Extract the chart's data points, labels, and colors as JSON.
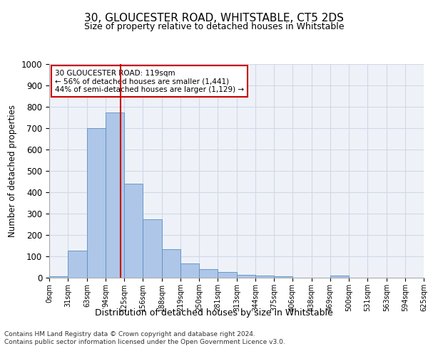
{
  "title1": "30, GLOUCESTER ROAD, WHITSTABLE, CT5 2DS",
  "title2": "Size of property relative to detached houses in Whitstable",
  "xlabel_bottom": "Distribution of detached houses by size in Whitstable",
  "ylabel": "Number of detached properties",
  "bins": [
    0,
    31,
    63,
    94,
    125,
    156,
    188,
    219,
    250,
    281,
    313,
    344,
    375,
    406,
    438,
    469,
    500,
    531,
    563,
    594,
    625
  ],
  "counts": [
    8,
    128,
    700,
    775,
    440,
    275,
    133,
    68,
    40,
    27,
    14,
    11,
    8,
    0,
    0,
    10,
    0,
    0,
    0,
    0
  ],
  "bar_color": "#aec6e8",
  "bar_edge_color": "#5a8fc2",
  "grid_color": "#d0d8e8",
  "bg_color": "#eef2f8",
  "property_size": 119,
  "vline_color": "#cc0000",
  "annotation_text": "30 GLOUCESTER ROAD: 119sqm\n← 56% of detached houses are smaller (1,441)\n44% of semi-detached houses are larger (1,129) →",
  "annotation_box_color": "#ffffff",
  "annotation_box_edge": "#cc0000",
  "footer1": "Contains HM Land Registry data © Crown copyright and database right 2024.",
  "footer2": "Contains public sector information licensed under the Open Government Licence v3.0.",
  "ylim": [
    0,
    1000
  ],
  "xlim": [
    0,
    625
  ],
  "yticks": [
    0,
    100,
    200,
    300,
    400,
    500,
    600,
    700,
    800,
    900,
    1000
  ]
}
